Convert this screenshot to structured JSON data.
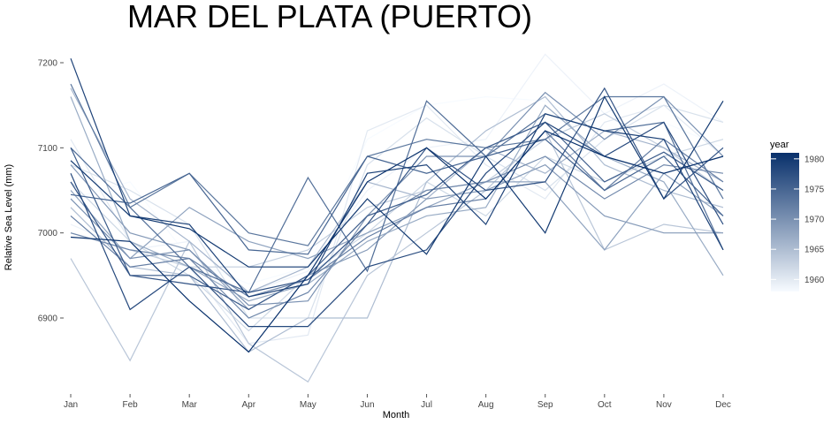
{
  "chart_data": {
    "type": "line",
    "title": "MAR DEL PLATA (PUERTO)",
    "xlabel": "Month",
    "ylabel": "Relative Sea Level (mm)",
    "categories": [
      "Jan",
      "Feb",
      "Mar",
      "Apr",
      "May",
      "Jun",
      "Jul",
      "Aug",
      "Sep",
      "Oct",
      "Nov",
      "Dec"
    ],
    "yticks": [
      6900,
      7000,
      7100,
      7200
    ],
    "ylim": [
      6835,
      7218
    ],
    "grid": false,
    "legend": {
      "title": "year",
      "placement": "right",
      "ticks": [
        1960,
        1965,
        1970,
        1975,
        1980
      ],
      "range": [
        1958,
        1981
      ],
      "color_low": "#f7fbff",
      "color_high": "#08306b"
    },
    "series": [
      {
        "year": 1958,
        "values": [
          7040,
          7060,
          6970,
          6940,
          6960,
          7110,
          7150,
          7160,
          7155,
          7120,
          7130,
          7100
        ]
      },
      {
        "year": 1959,
        "values": [
          7010,
          6980,
          6990,
          6930,
          6955,
          7050,
          7100,
          7110,
          7210,
          7140,
          7175,
          7130
        ]
      },
      {
        "year": 1960,
        "values": [
          7110,
          6990,
          6960,
          6870,
          6880,
          7120,
          7150,
          7080,
          7040,
          7130,
          7150,
          7090
        ]
      },
      {
        "year": 1961,
        "values": [
          7080,
          7050,
          7010,
          6900,
          6900,
          7080,
          7135,
          7090,
          7050,
          7110,
          7150,
          7130
        ]
      },
      {
        "year": 1962,
        "values": [
          7060,
          6990,
          6950,
          6885,
          6950,
          7000,
          7060,
          7020,
          7090,
          7060,
          7090,
          7110
        ]
      },
      {
        "year": 1963,
        "values": [
          7000,
          6980,
          6960,
          6960,
          6980,
          7030,
          7050,
          7060,
          7110,
          7140,
          7100,
          7050
        ]
      },
      {
        "year": 1964,
        "values": [
          6970,
          6850,
          6990,
          6870,
          6825,
          6950,
          7000,
          7050,
          7120,
          6980,
          7010,
          7000
        ]
      },
      {
        "year": 1965,
        "values": [
          7030,
          6960,
          6950,
          6860,
          6900,
          6900,
          7060,
          7120,
          7160,
          7080,
          7050,
          7030
        ]
      },
      {
        "year": 1966,
        "values": [
          7170,
          7040,
          6990,
          6930,
          6960,
          7060,
          7040,
          7100,
          7070,
          7120,
          7100,
          7060
        ]
      },
      {
        "year": 1967,
        "values": [
          7160,
          6990,
          6960,
          6920,
          6940,
          6990,
          7020,
          7030,
          7150,
          7090,
          7060,
          6950
        ]
      },
      {
        "year": 1968,
        "values": [
          7050,
          6970,
          7030,
          6990,
          6970,
          7000,
          7030,
          7060,
          7060,
          6980,
          7070,
          7020
        ]
      },
      {
        "year": 1969,
        "values": [
          7080,
          7000,
          6980,
          6910,
          6950,
          6980,
          7040,
          7050,
          7080,
          7020,
          7000,
          7000
        ]
      },
      {
        "year": 1970,
        "values": [
          7040,
          6970,
          6980,
          6915,
          6920,
          7020,
          7090,
          7090,
          7165,
          7110,
          7160,
          7090
        ]
      },
      {
        "year": 1971,
        "values": [
          7000,
          6980,
          6970,
          6900,
          6930,
          7010,
          7050,
          7060,
          7090,
          7040,
          7080,
          7070
        ]
      },
      {
        "year": 1972,
        "values": [
          7020,
          6960,
          6970,
          6925,
          6945,
          6995,
          7030,
          7040,
          7120,
          7050,
          7110,
          7060
        ]
      },
      {
        "year": 1973,
        "values": [
          7175,
          7030,
          7070,
          7000,
          6985,
          7090,
          7110,
          7100,
          7110,
          7160,
          7160,
          7040
        ]
      },
      {
        "year": 1974,
        "values": [
          7100,
          7030,
          6960,
          6930,
          7065,
          6955,
          7155,
          7090,
          7140,
          7120,
          7130,
          6980
        ]
      },
      {
        "year": 1975,
        "values": [
          7045,
          7035,
          7070,
          6980,
          6975,
          7090,
          7070,
          7090,
          7110,
          7050,
          7090,
          7020
        ]
      },
      {
        "year": 1976,
        "values": [
          7100,
          6950,
          6950,
          6910,
          6950,
          7020,
          7045,
          7100,
          7130,
          7060,
          7095,
          7050
        ]
      },
      {
        "year": 1977,
        "values": [
          7060,
          6950,
          6940,
          6930,
          6945,
          7010,
          7100,
          7050,
          7060,
          7170,
          7040,
          7100
        ]
      },
      {
        "year": 1978,
        "values": [
          7070,
          6910,
          6960,
          6890,
          6890,
          6960,
          6980,
          7070,
          7130,
          7090,
          7130,
          7010
        ]
      },
      {
        "year": 1979,
        "values": [
          7205,
          7020,
          7010,
          6925,
          6940,
          7070,
          7080,
          7010,
          7140,
          7120,
          7110,
          6980
        ]
      },
      {
        "year": 1980,
        "values": [
          7085,
          7020,
          7005,
          6960,
          6960,
          7040,
          6975,
          7090,
          7000,
          7160,
          7040,
          7155
        ]
      },
      {
        "year": 1981,
        "values": [
          6995,
          6990,
          6920,
          6860,
          6950,
          7060,
          7100,
          7040,
          7120,
          7090,
          7070,
          7090
        ]
      }
    ]
  }
}
